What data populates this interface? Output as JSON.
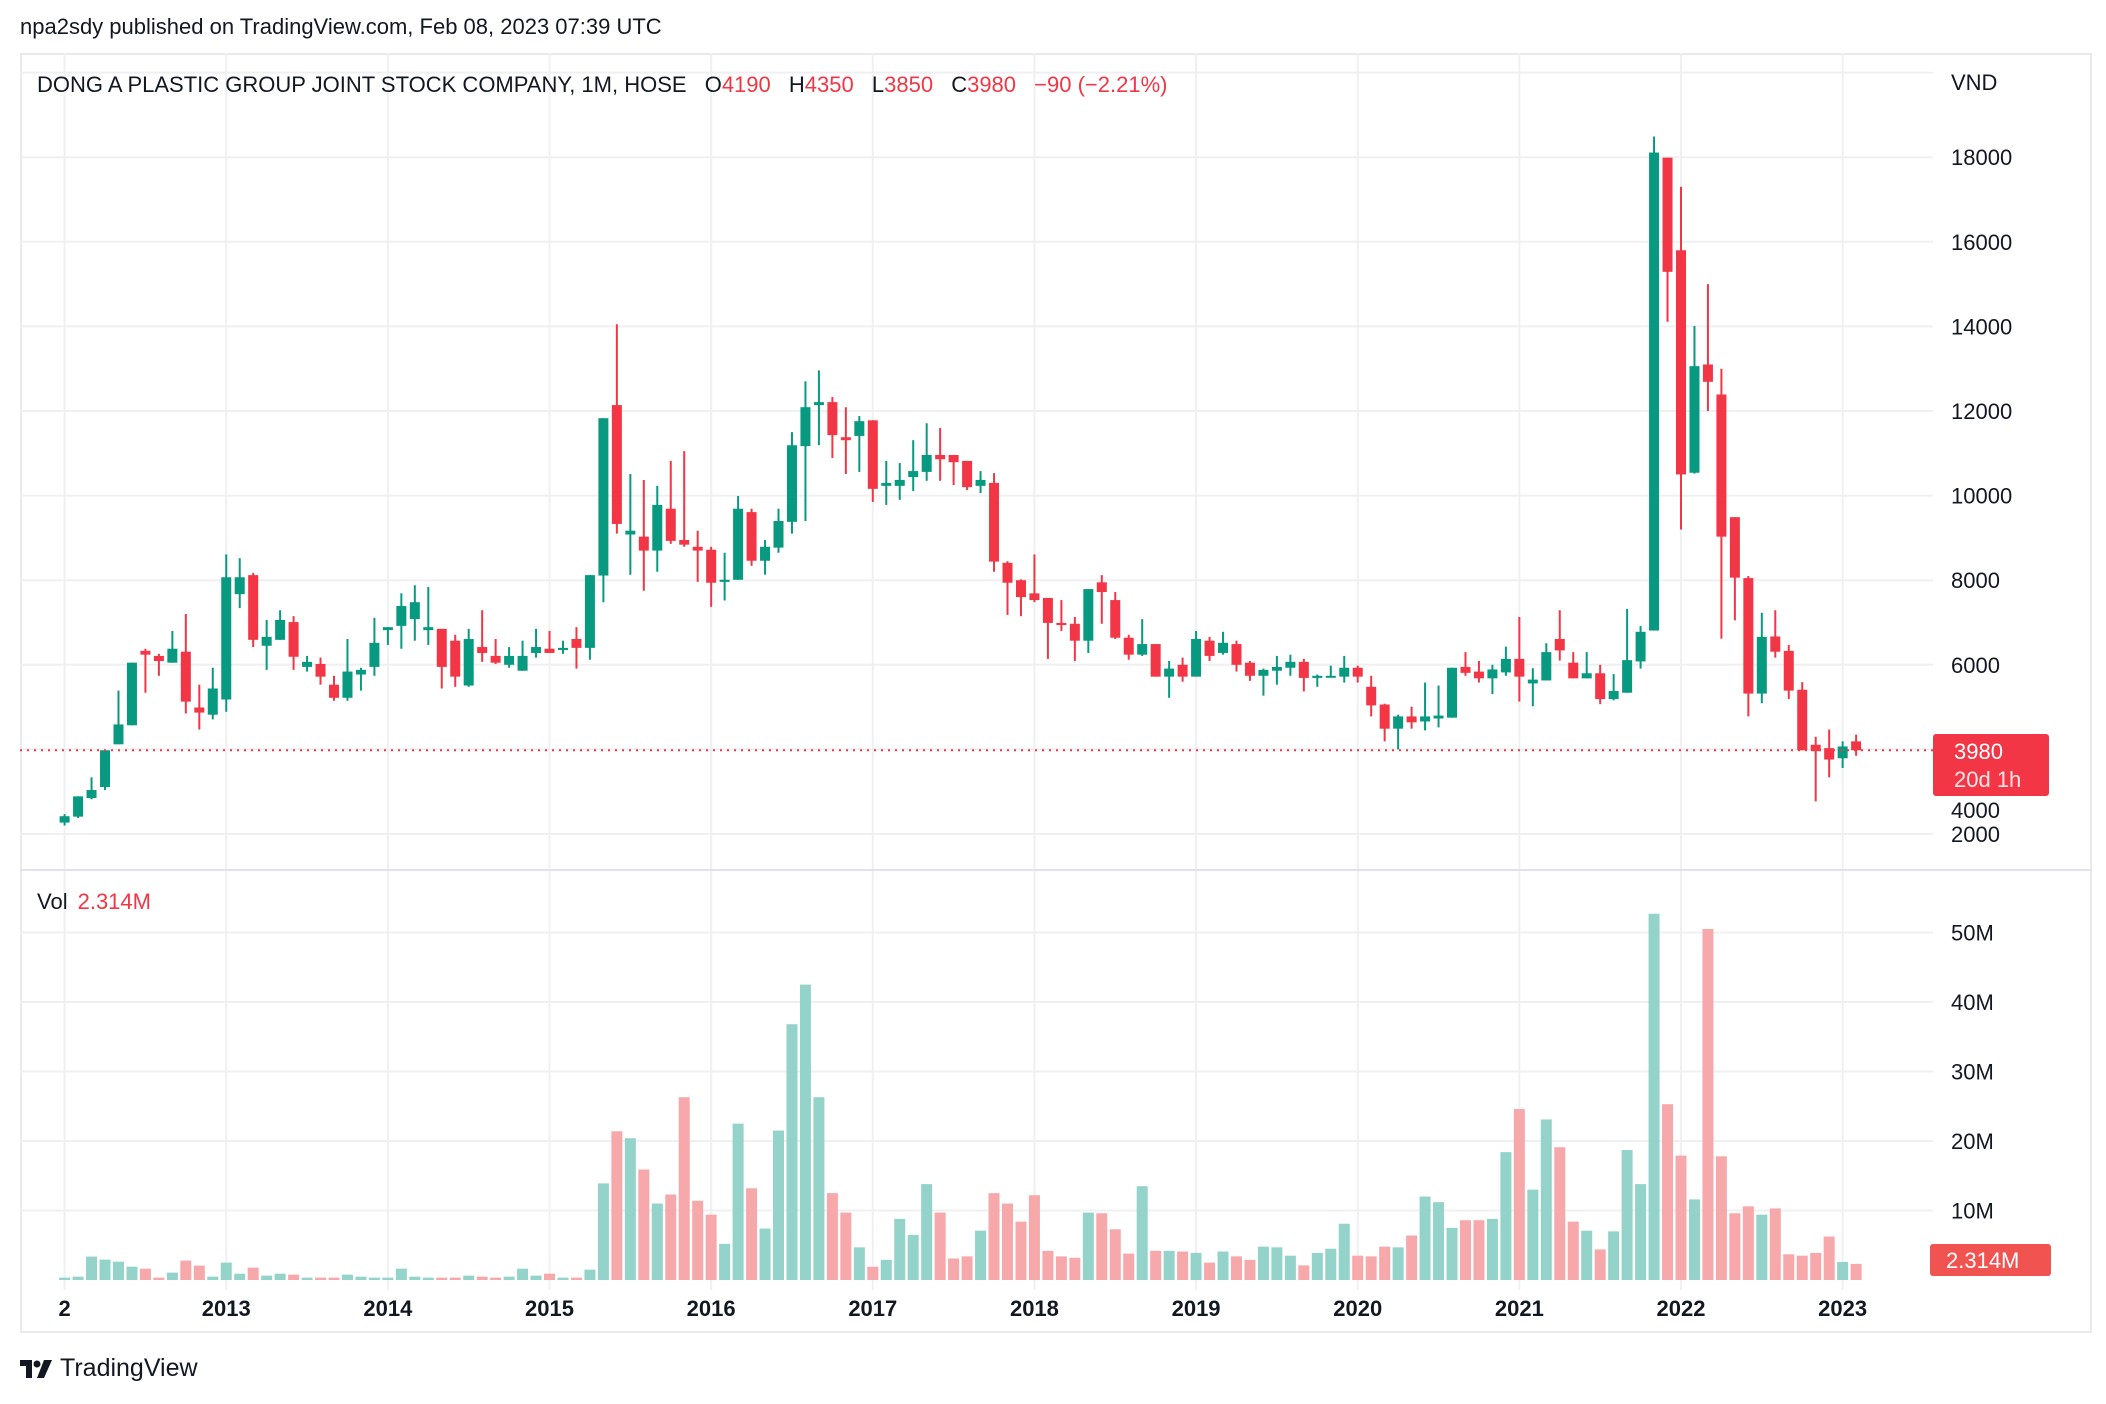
{
  "header": {
    "published": "npa2sdy published on TradingView.com, Feb 08, 2023 07:39 UTC"
  },
  "legend": {
    "title": "DONG A PLASTIC GROUP JOINT STOCK COMPANY, 1M, HOSE",
    "open_label": "O",
    "open": "4190",
    "high_label": "H",
    "high": "4350",
    "low_label": "L",
    "low": "3850",
    "close_label": "C",
    "close": "3980",
    "change": "−90 (−2.21%)"
  },
  "volume_legend": {
    "label": "Vol",
    "value": "2.314M"
  },
  "price_badge": {
    "price": "3980",
    "countdown": "20d 1h"
  },
  "volume_badge": "2.314M",
  "footer": {
    "brand": "TradingView"
  },
  "colors": {
    "up": "#089981",
    "down": "#f23645",
    "vol_up": "#93d3ca",
    "vol_down": "#f7a8aa",
    "grid": "#f0f0f3",
    "text": "#131722"
  },
  "chart_data": {
    "type": "candlestick",
    "currency_label": "VND",
    "interval": "1M",
    "price_ylim": [
      1500,
      20000
    ],
    "price_ticks": [
      2000,
      4000,
      6000,
      8000,
      10000,
      12000,
      14000,
      16000,
      18000
    ],
    "price_tick_labels": [
      "2000",
      "4000",
      "6000",
      "8000",
      "10000",
      "12000",
      "14000",
      "16000",
      "18000"
    ],
    "volume_ylim": [
      0,
      50000000
    ],
    "volume_ticks": [
      10000000,
      20000000,
      30000000,
      40000000,
      50000000
    ],
    "volume_tick_labels": [
      "10M",
      "20M",
      "30M",
      "40M",
      "50M"
    ],
    "x_tick_labels": [
      "2",
      "2013",
      "2014",
      "2015",
      "2016",
      "2017",
      "2018",
      "2019",
      "2020",
      "2021",
      "2022",
      "2023"
    ],
    "last_price": 3980,
    "grid": true,
    "columns": [
      "month",
      "open",
      "high",
      "low",
      "close",
      "volume_M"
    ],
    "candles": [
      [
        "2012-01",
        2270,
        2470,
        2200,
        2420,
        0.34
      ],
      [
        "2012-02",
        2410,
        2890,
        2380,
        2890,
        0.48
      ],
      [
        "2012-03",
        2850,
        3340,
        2820,
        3040,
        3.37
      ],
      [
        "2012-04",
        3110,
        3980,
        3040,
        3980,
        2.93
      ],
      [
        "2012-05",
        4120,
        5390,
        4120,
        4590,
        2.64
      ],
      [
        "2012-06",
        4570,
        6050,
        4570,
        6050,
        1.92
      ],
      [
        "2012-07",
        6330,
        6380,
        5340,
        6240,
        1.63
      ],
      [
        "2012-08",
        6210,
        6260,
        5740,
        6090,
        0.34
      ],
      [
        "2012-09",
        6050,
        6800,
        6050,
        6380,
        1.06
      ],
      [
        "2012-10",
        6310,
        7200,
        4850,
        5130,
        2.79
      ],
      [
        "2012-11",
        4990,
        5530,
        4470,
        4870,
        2.07
      ],
      [
        "2012-12",
        4820,
        5930,
        4710,
        5440,
        0.48
      ],
      [
        "2013-01",
        5180,
        8610,
        4890,
        8070,
        2.5
      ],
      [
        "2013-02",
        7670,
        8520,
        7340,
        8070,
        0.91
      ],
      [
        "2013-03",
        8120,
        8170,
        6420,
        6590,
        1.78
      ],
      [
        "2013-04",
        6450,
        7060,
        5880,
        6660,
        0.63
      ],
      [
        "2013-05",
        6590,
        7290,
        6590,
        7060,
        0.91
      ],
      [
        "2013-06",
        7010,
        7150,
        5880,
        6190,
        0.77
      ],
      [
        "2013-07",
        5950,
        6210,
        5840,
        6070,
        0.34
      ],
      [
        "2013-08",
        6020,
        6170,
        5530,
        5720,
        0.34
      ],
      [
        "2013-09",
        5530,
        5740,
        5150,
        5220,
        0.34
      ],
      [
        "2013-10",
        5220,
        6610,
        5150,
        5840,
        0.77
      ],
      [
        "2013-11",
        5770,
        5930,
        5390,
        5880,
        0.48
      ],
      [
        "2013-12",
        5950,
        7110,
        5740,
        6520,
        0.34
      ],
      [
        "2014-01",
        6820,
        6890,
        6470,
        6890,
        0.34
      ],
      [
        "2014-02",
        6920,
        7690,
        6380,
        7390,
        1.63
      ],
      [
        "2014-03",
        7080,
        7880,
        6570,
        7480,
        0.48
      ],
      [
        "2014-04",
        6820,
        7840,
        6470,
        6890,
        0.34
      ],
      [
        "2014-05",
        6850,
        6850,
        5440,
        5950,
        0.34
      ],
      [
        "2014-06",
        6570,
        6710,
        5480,
        5720,
        0.34
      ],
      [
        "2014-07",
        5510,
        6850,
        5480,
        6610,
        0.63
      ],
      [
        "2014-08",
        6420,
        7290,
        6070,
        6280,
        0.48
      ],
      [
        "2014-09",
        6210,
        6610,
        6020,
        6050,
        0.34
      ],
      [
        "2014-10",
        6000,
        6420,
        5930,
        6210,
        0.48
      ],
      [
        "2014-11",
        5860,
        6570,
        5860,
        6210,
        1.63
      ],
      [
        "2014-12",
        6280,
        6850,
        6170,
        6420,
        0.63
      ],
      [
        "2015-01",
        6380,
        6800,
        6280,
        6280,
        0.91
      ],
      [
        "2015-02",
        6350,
        6570,
        6260,
        6400,
        0.34
      ],
      [
        "2015-03",
        6610,
        6890,
        5910,
        6400,
        0.34
      ],
      [
        "2015-04",
        6400,
        8120,
        6120,
        8120,
        1.49
      ],
      [
        "2015-05",
        8110,
        11830,
        7480,
        11830,
        13.9
      ],
      [
        "2015-06",
        12140,
        14050,
        9100,
        9330,
        21.4
      ],
      [
        "2015-07",
        9080,
        10510,
        8130,
        9170,
        20.4
      ],
      [
        "2015-08",
        9030,
        10370,
        7750,
        8700,
        15.9
      ],
      [
        "2015-09",
        8700,
        10230,
        8200,
        9780,
        11.0
      ],
      [
        "2015-10",
        9690,
        10820,
        8860,
        8930,
        12.3
      ],
      [
        "2015-11",
        8950,
        11050,
        8790,
        8840,
        26.3
      ],
      [
        "2015-12",
        8790,
        9170,
        7960,
        8700,
        11.4
      ],
      [
        "2016-01",
        8720,
        8790,
        7370,
        7940,
        9.4
      ],
      [
        "2016-02",
        7960,
        8650,
        7520,
        8010,
        5.2
      ],
      [
        "2016-03",
        8010,
        9990,
        8010,
        9690,
        22.5
      ],
      [
        "2016-04",
        9610,
        9690,
        8340,
        8460,
        13.2
      ],
      [
        "2016-05",
        8460,
        8950,
        8130,
        8790,
        7.4
      ],
      [
        "2016-06",
        8770,
        9690,
        8650,
        9400,
        21.5
      ],
      [
        "2016-07",
        9380,
        11500,
        9100,
        11190,
        36.8
      ],
      [
        "2016-08",
        11170,
        12700,
        9400,
        12090,
        42.5
      ],
      [
        "2016-09",
        12140,
        12960,
        11190,
        12210,
        26.3
      ],
      [
        "2016-10",
        12210,
        12330,
        10890,
        11430,
        12.5
      ],
      [
        "2016-11",
        11380,
        12090,
        10510,
        11310,
        9.7
      ],
      [
        "2016-12",
        11410,
        11880,
        10560,
        11760,
        4.7
      ],
      [
        "2017-01",
        11780,
        11780,
        9850,
        10160,
        1.9
      ],
      [
        "2017-02",
        10230,
        10820,
        9780,
        10300,
        2.9
      ],
      [
        "2017-03",
        10230,
        10770,
        9900,
        10370,
        8.8
      ],
      [
        "2017-04",
        10440,
        11310,
        10110,
        10580,
        6.5
      ],
      [
        "2017-05",
        10560,
        11710,
        10350,
        10960,
        13.8
      ],
      [
        "2017-06",
        10960,
        11600,
        10350,
        10860,
        9.7
      ],
      [
        "2017-07",
        10960,
        10960,
        10250,
        10790,
        3.1
      ],
      [
        "2017-08",
        10820,
        10820,
        10130,
        10200,
        3.4
      ],
      [
        "2017-09",
        10230,
        10580,
        10060,
        10370,
        7.1
      ],
      [
        "2017-10",
        10300,
        10530,
        8200,
        8440,
        12.5
      ],
      [
        "2017-11",
        8410,
        8450,
        7180,
        7940,
        11.0
      ],
      [
        "2017-12",
        8000,
        8020,
        7150,
        7600,
        8.4
      ],
      [
        "2018-01",
        7690,
        8610,
        7480,
        7530,
        12.2
      ],
      [
        "2018-02",
        7580,
        7580,
        6140,
        6990,
        4.2
      ],
      [
        "2018-03",
        6990,
        7530,
        6800,
        6940,
        3.4
      ],
      [
        "2018-04",
        6970,
        7130,
        6090,
        6570,
        3.2
      ],
      [
        "2018-05",
        6570,
        7790,
        6280,
        7790,
        9.7
      ],
      [
        "2018-06",
        7950,
        8120,
        6970,
        7720,
        9.6
      ],
      [
        "2018-07",
        7530,
        7720,
        6610,
        6640,
        7.3
      ],
      [
        "2018-08",
        6640,
        6710,
        6120,
        6240,
        3.8
      ],
      [
        "2018-09",
        6240,
        7080,
        6210,
        6490,
        13.5
      ],
      [
        "2018-10",
        6490,
        6490,
        5720,
        5720,
        4.2
      ],
      [
        "2018-11",
        5720,
        6090,
        5220,
        5910,
        4.2
      ],
      [
        "2018-12",
        6000,
        6170,
        5600,
        5720,
        4.1
      ],
      [
        "2019-01",
        5720,
        6800,
        5720,
        6610,
        3.9
      ],
      [
        "2019-02",
        6570,
        6660,
        6090,
        6210,
        2.5
      ],
      [
        "2019-03",
        6280,
        6780,
        6240,
        6520,
        4.1
      ],
      [
        "2019-04",
        6490,
        6570,
        5840,
        6000,
        3.4
      ],
      [
        "2019-05",
        6050,
        6090,
        5620,
        5740,
        2.9
      ],
      [
        "2019-06",
        5740,
        5910,
        5270,
        5880,
        4.8
      ],
      [
        "2019-07",
        5860,
        6210,
        5530,
        5950,
        4.7
      ],
      [
        "2019-08",
        5930,
        6240,
        5740,
        6070,
        3.5
      ],
      [
        "2019-09",
        6070,
        6140,
        5370,
        5690,
        2.1
      ],
      [
        "2019-10",
        5690,
        5770,
        5480,
        5740,
        3.9
      ],
      [
        "2019-11",
        5710,
        5980,
        5710,
        5740,
        4.5
      ],
      [
        "2019-12",
        5720,
        6210,
        5580,
        5930,
        8.1
      ],
      [
        "2020-01",
        5930,
        5980,
        5580,
        5720,
        3.5
      ],
      [
        "2020-02",
        5480,
        5740,
        4780,
        5040,
        3.4
      ],
      [
        "2020-03",
        5060,
        5080,
        4190,
        4490,
        4.8
      ],
      [
        "2020-04",
        4490,
        4820,
        4000,
        4780,
        4.7
      ],
      [
        "2020-05",
        4780,
        5010,
        4490,
        4640,
        6.4
      ],
      [
        "2020-06",
        4660,
        5580,
        4450,
        4780,
        12.0
      ],
      [
        "2020-07",
        4730,
        5510,
        4520,
        4800,
        11.2
      ],
      [
        "2020-08",
        4750,
        5930,
        4750,
        5930,
        7.5
      ],
      [
        "2020-09",
        5950,
        6300,
        5740,
        5810,
        8.6
      ],
      [
        "2020-10",
        5840,
        6090,
        5580,
        5680,
        8.6
      ],
      [
        "2020-11",
        5680,
        6000,
        5310,
        5890,
        8.8
      ],
      [
        "2020-12",
        5820,
        6430,
        5740,
        6140,
        18.4
      ],
      [
        "2021-01",
        6140,
        7130,
        5130,
        5720,
        24.6
      ],
      [
        "2021-02",
        5560,
        5920,
        5020,
        5650,
        13.0
      ],
      [
        "2021-03",
        5630,
        6510,
        5630,
        6300,
        23.1
      ],
      [
        "2021-04",
        6610,
        7290,
        6100,
        6340,
        19.1
      ],
      [
        "2021-05",
        6050,
        6300,
        5680,
        5680,
        8.4
      ],
      [
        "2021-06",
        5680,
        6300,
        5680,
        5800,
        7.1
      ],
      [
        "2021-07",
        5800,
        6000,
        5070,
        5190,
        4.4
      ],
      [
        "2021-08",
        5190,
        5780,
        5160,
        5380,
        7.0
      ],
      [
        "2021-09",
        5340,
        7320,
        5340,
        6110,
        18.7
      ],
      [
        "2021-10",
        6080,
        6920,
        5910,
        6780,
        13.8
      ],
      [
        "2021-11",
        6810,
        18490,
        6810,
        18110,
        52.7
      ],
      [
        "2021-12",
        17990,
        17990,
        14110,
        15290,
        25.3
      ],
      [
        "2022-01",
        15800,
        17300,
        9200,
        10500,
        17.9
      ],
      [
        "2022-02",
        10540,
        14010,
        10520,
        13060,
        11.6
      ],
      [
        "2022-03",
        13100,
        15000,
        12000,
        12690,
        50.5
      ],
      [
        "2022-04",
        12390,
        13000,
        6620,
        9030,
        17.8
      ],
      [
        "2022-05",
        9490,
        9490,
        7050,
        8060,
        9.6
      ],
      [
        "2022-06",
        8050,
        8100,
        4780,
        5320,
        10.6
      ],
      [
        "2022-07",
        5320,
        7230,
        5090,
        6660,
        9.4
      ],
      [
        "2022-08",
        6670,
        7290,
        6170,
        6310,
        10.3
      ],
      [
        "2022-09",
        6330,
        6470,
        5190,
        5390,
        3.7
      ],
      [
        "2022-10",
        5410,
        5590,
        3980,
        3980,
        3.5
      ],
      [
        "2022-11",
        4110,
        4300,
        2770,
        3960,
        3.9
      ],
      [
        "2022-12",
        4030,
        4470,
        3340,
        3760,
        6.25
      ],
      [
        "2023-01",
        3790,
        4190,
        3560,
        4070,
        2.6
      ],
      [
        "2023-02",
        4190,
        4350,
        3850,
        3980,
        2.314
      ]
    ]
  }
}
